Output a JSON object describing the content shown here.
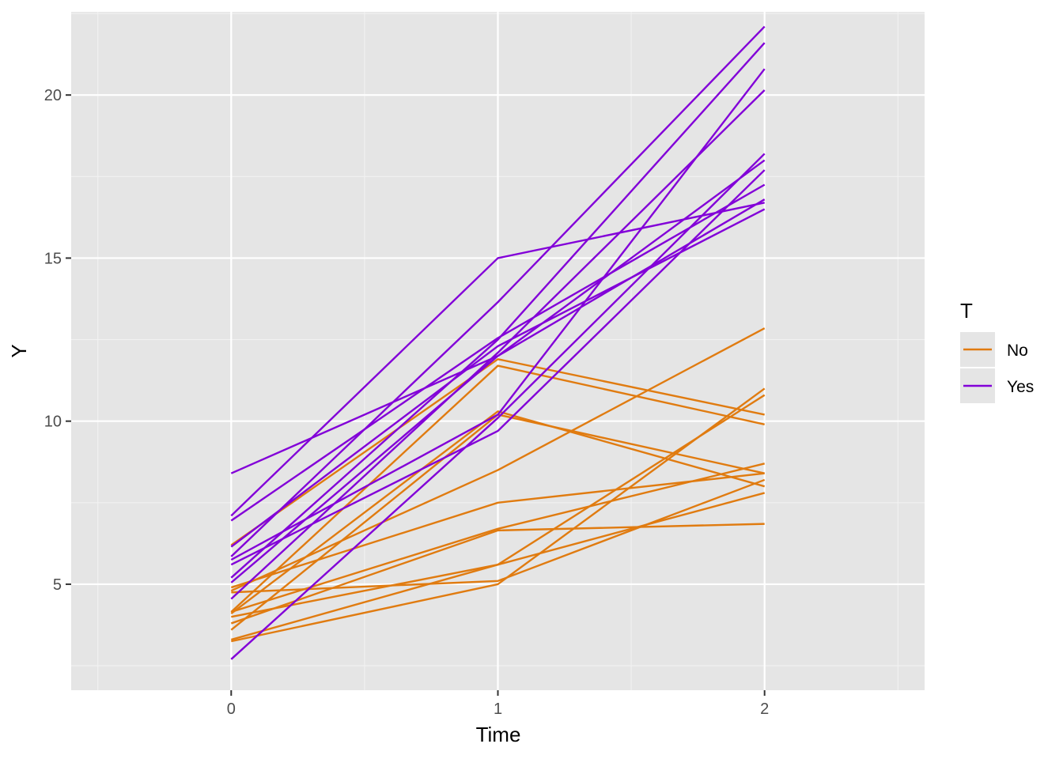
{
  "chart_data": {
    "type": "line",
    "title": "",
    "xlabel": "Time",
    "ylabel": "Y",
    "x": [
      0,
      1,
      2
    ],
    "x_ticks": [
      "0",
      "1",
      "2"
    ],
    "y_ticks": [
      "5",
      "10",
      "15",
      "20"
    ],
    "xlim": [
      -0.6,
      2.6
    ],
    "ylim": [
      1.75,
      22.55
    ],
    "grid": true,
    "legend": {
      "title": "T",
      "placement": "right",
      "entries": [
        {
          "label": "No",
          "color": "#E07B10"
        },
        {
          "label": "Yes",
          "color": "#8200D8"
        }
      ]
    },
    "groups": [
      {
        "label": "No",
        "color": "#E07B10",
        "lines": [
          [
            6.2,
            11.9,
            10.2
          ],
          [
            4.15,
            11.7,
            9.9
          ],
          [
            4.1,
            10.3,
            8.0
          ],
          [
            3.6,
            10.2,
            8.4
          ],
          [
            4.8,
            8.5,
            12.85
          ],
          [
            4.9,
            7.5,
            8.4
          ],
          [
            4.15,
            6.7,
            8.7
          ],
          [
            3.8,
            6.65,
            6.85
          ],
          [
            4.75,
            5.1,
            8.2
          ],
          [
            3.3,
            5.6,
            7.8
          ],
          [
            4.0,
            5.6,
            10.8
          ],
          [
            3.25,
            5.0,
            11.0
          ]
        ]
      },
      {
        "label": "Yes",
        "color": "#8200D8",
        "lines": [
          [
            8.4,
            12.0,
            18.0
          ],
          [
            7.1,
            15.0,
            16.7
          ],
          [
            6.95,
            12.55,
            17.25
          ],
          [
            6.15,
            12.3,
            16.5
          ],
          [
            5.85,
            13.65,
            22.1
          ],
          [
            5.75,
            10.2,
            20.8
          ],
          [
            5.6,
            9.7,
            17.7
          ],
          [
            5.2,
            12.5,
            21.6
          ],
          [
            5.05,
            12.0,
            16.8
          ],
          [
            4.55,
            12.1,
            20.15
          ],
          [
            2.7,
            10.1,
            18.2
          ]
        ]
      }
    ]
  }
}
